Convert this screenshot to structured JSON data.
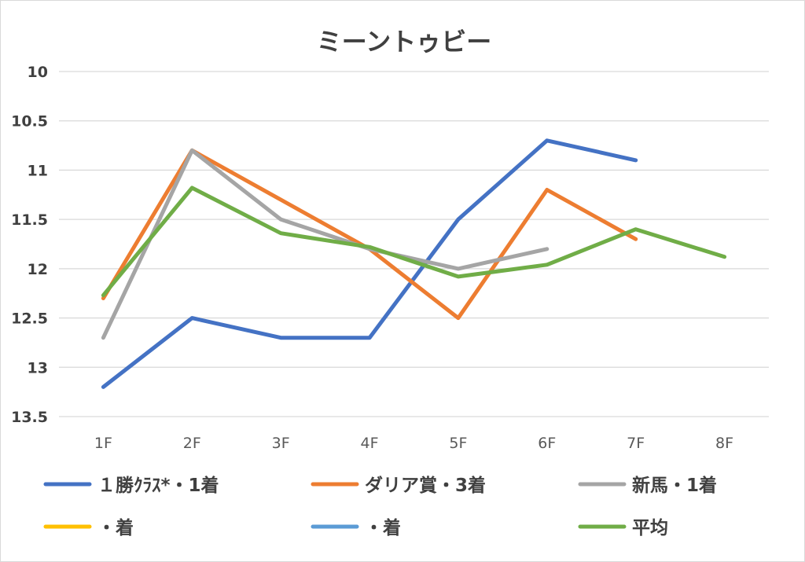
{
  "chart_data": {
    "type": "line",
    "title": "ミーントゥビー",
    "categories": [
      "1F",
      "2F",
      "3F",
      "4F",
      "5F",
      "6F",
      "7F",
      "8F"
    ],
    "y_tick_labels": [
      "10",
      "10.5",
      "11",
      "11.5",
      "12",
      "12.5",
      "13",
      "13.5"
    ],
    "ylim": [
      10,
      13.5
    ],
    "y_reversed": true,
    "grid": true,
    "legend_placement": "bottom",
    "series": [
      {
        "name": "１勝ｸﾗｽ*・1着",
        "color": "#4472C4",
        "values": [
          13.2,
          12.5,
          12.7,
          12.7,
          11.5,
          10.7,
          10.9,
          null
        ]
      },
      {
        "name": "ダリア賞・3着",
        "color": "#ED7D31",
        "values": [
          12.3,
          10.8,
          11.3,
          11.8,
          12.5,
          11.2,
          11.7,
          null
        ]
      },
      {
        "name": "新馬・1着",
        "color": "#A5A5A5",
        "values": [
          12.7,
          10.8,
          11.5,
          11.8,
          12.0,
          11.8,
          null,
          null
        ]
      },
      {
        "name": "・着",
        "color": "#FFC000",
        "values": [
          null,
          null,
          null,
          null,
          null,
          null,
          null,
          null
        ]
      },
      {
        "name": "・着",
        "color": "#5B9BD5",
        "values": [
          null,
          null,
          null,
          null,
          null,
          null,
          null,
          null
        ]
      },
      {
        "name": "平均",
        "color": "#70AD47",
        "values": [
          12.27,
          11.18,
          11.64,
          11.78,
          12.08,
          11.96,
          11.6,
          11.88
        ]
      }
    ]
  }
}
